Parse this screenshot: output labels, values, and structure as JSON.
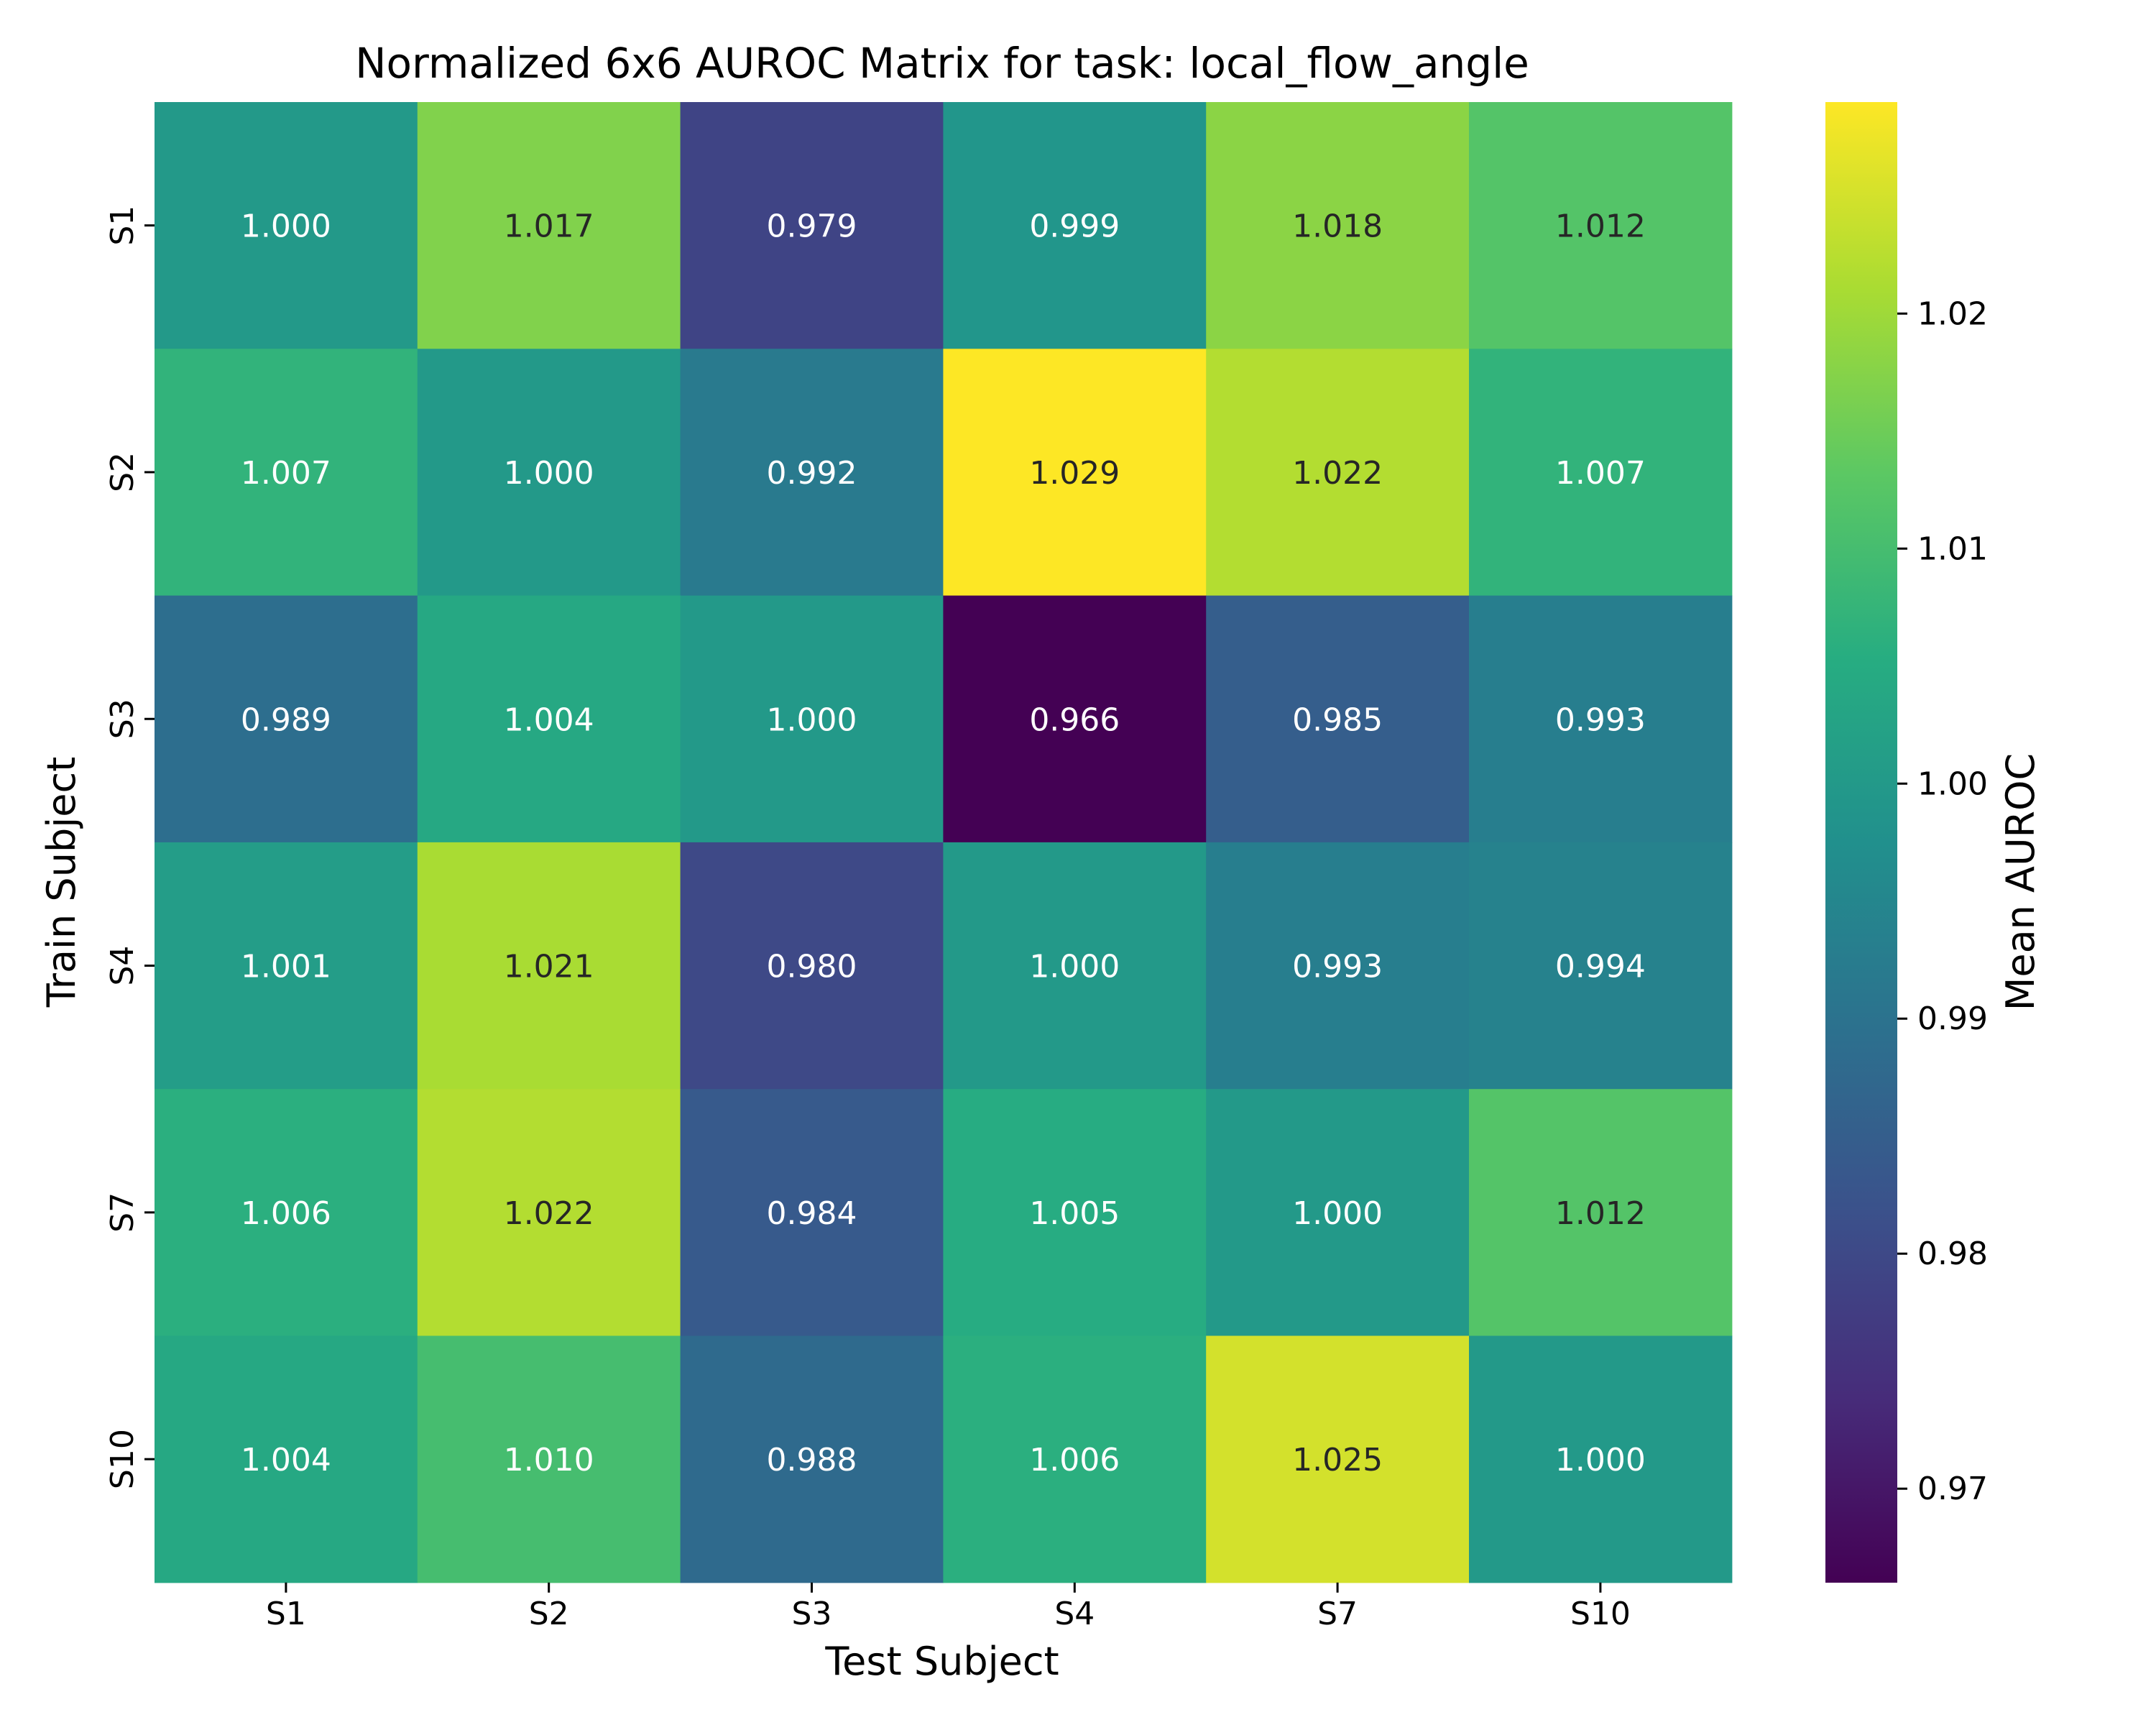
{
  "chart_data": {
    "type": "heatmap",
    "title": "Normalized 6x6 AUROC Matrix for task: local_flow_angle",
    "xlabel": "Test Subject",
    "ylabel": "Train Subject",
    "x_categories": [
      "S1",
      "S2",
      "S3",
      "S4",
      "S7",
      "S10"
    ],
    "y_categories": [
      "S1",
      "S2",
      "S3",
      "S4",
      "S7",
      "S10"
    ],
    "values": [
      [
        1.0,
        1.017,
        0.979,
        0.999,
        1.018,
        1.012
      ],
      [
        1.007,
        1.0,
        0.992,
        1.029,
        1.022,
        1.007
      ],
      [
        0.989,
        1.004,
        1.0,
        0.966,
        0.985,
        0.993
      ],
      [
        1.001,
        1.021,
        0.98,
        1.0,
        0.993,
        0.994
      ],
      [
        1.006,
        1.022,
        0.984,
        1.005,
        1.0,
        1.012
      ],
      [
        1.004,
        1.01,
        0.988,
        1.006,
        1.025,
        1.0
      ]
    ],
    "value_format": "0.000",
    "colormap": "viridis",
    "color_range": [
      0.966,
      1.029
    ],
    "colorbar": {
      "label": "Mean AUROC",
      "ticks": [
        0.97,
        0.98,
        0.99,
        1.0,
        1.01,
        1.02
      ],
      "tick_labels": [
        "0.97",
        "0.98",
        "0.99",
        "1.00",
        "1.01",
        "1.02"
      ]
    },
    "grid": false
  }
}
